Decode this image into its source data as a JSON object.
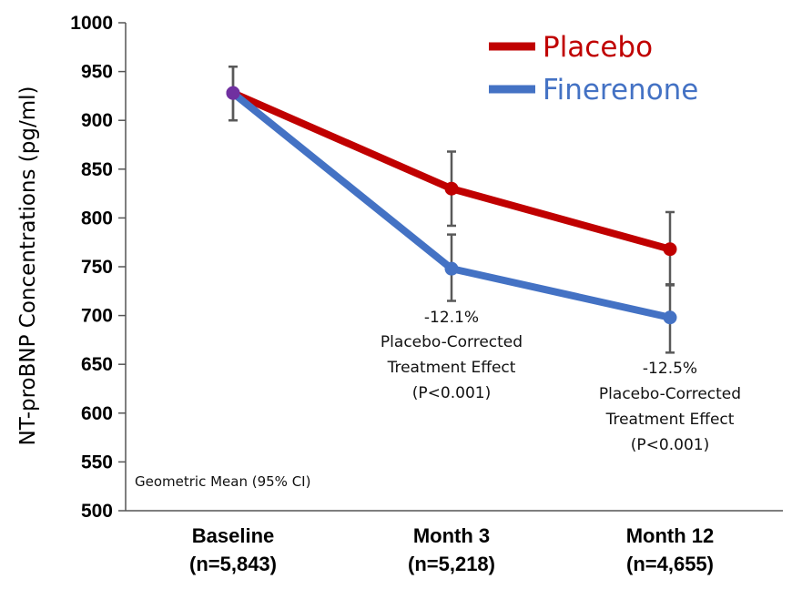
{
  "chart_data": {
    "type": "line",
    "ylabel": "NT-proBNP Concentrations (pg/ml)",
    "ylim": [
      500,
      1000
    ],
    "yticks": [
      "500",
      "550",
      "600",
      "650",
      "700",
      "750",
      "800",
      "850",
      "900",
      "950",
      "1000"
    ],
    "categories": [
      {
        "line1": "Baseline",
        "line2": "(n=5,843)"
      },
      {
        "line1": "Month 3",
        "line2": "(n=5,218)"
      },
      {
        "line1": "Month 12",
        "line2": "(n=4,655)"
      }
    ],
    "series": [
      {
        "name": "Placebo",
        "color": "#C00000",
        "values": [
          928,
          830,
          768
        ],
        "ci_low": [
          900,
          792,
          732
        ],
        "ci_high": [
          955,
          868,
          806
        ]
      },
      {
        "name": "Finerenone",
        "color": "#4472C4",
        "values": [
          928,
          748,
          698
        ],
        "ci_low": [
          900,
          715,
          662
        ],
        "ci_high": [
          955,
          783,
          731
        ]
      }
    ],
    "baseline_marker_color": "#7030A0",
    "note": "Geometric Mean (95% CI)",
    "annotations": [
      {
        "lines": [
          "-12.1%",
          "Placebo-Corrected",
          "Treatment Effect",
          "(P<0.001)"
        ]
      },
      {
        "lines": [
          "-12.5%",
          "Placebo-Corrected",
          "Treatment Effect",
          "(P<0.001)"
        ]
      }
    ]
  }
}
